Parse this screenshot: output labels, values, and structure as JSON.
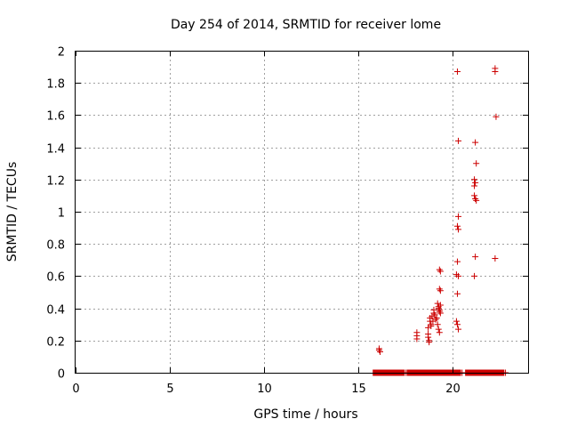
{
  "chart_data": {
    "type": "scatter",
    "title": "Day 254 of 2014, SRMTID for receiver lome",
    "xlabel": "GPS time / hours",
    "ylabel": "SRMTID / TECUs",
    "xlim": [
      0,
      24
    ],
    "ylim": [
      0,
      2
    ],
    "xticks": [
      0,
      5,
      10,
      15,
      20
    ],
    "xtick_labels": [
      "0",
      "5",
      "10",
      "15",
      "20"
    ],
    "yticks": [
      0,
      0.2,
      0.4,
      0.6,
      0.8,
      1,
      1.2,
      1.4,
      1.6,
      1.8,
      2
    ],
    "ytick_labels": [
      "0",
      "0.2",
      "0.4",
      "0.6",
      "0.8",
      "1",
      "1.2",
      "1.4",
      "1.6",
      "1.8",
      "2"
    ],
    "grid": true,
    "marker": "+",
    "color": "#cc0000",
    "series": [
      {
        "name": "SRMTID",
        "points": [
          [
            16.1,
            0.15
          ],
          [
            16.1,
            0.14
          ],
          [
            16.15,
            0.13
          ],
          [
            18.1,
            0.25
          ],
          [
            18.1,
            0.23
          ],
          [
            18.1,
            0.21
          ],
          [
            18.7,
            0.28
          ],
          [
            18.7,
            0.24
          ],
          [
            18.7,
            0.22
          ],
          [
            18.75,
            0.2
          ],
          [
            18.75,
            0.19
          ],
          [
            18.8,
            0.34
          ],
          [
            18.8,
            0.32
          ],
          [
            18.85,
            0.3
          ],
          [
            18.85,
            0.29
          ],
          [
            18.9,
            0.35
          ],
          [
            18.95,
            0.32
          ],
          [
            19.0,
            0.39
          ],
          [
            19.0,
            0.37
          ],
          [
            19.05,
            0.36
          ],
          [
            19.1,
            0.33
          ],
          [
            19.15,
            0.34
          ],
          [
            19.2,
            0.43
          ],
          [
            19.25,
            0.41
          ],
          [
            19.25,
            0.4
          ],
          [
            19.3,
            0.39
          ],
          [
            19.3,
            0.38
          ],
          [
            19.35,
            0.37
          ],
          [
            19.2,
            0.3
          ],
          [
            19.25,
            0.27
          ],
          [
            19.3,
            0.25
          ],
          [
            19.35,
            0.42
          ],
          [
            19.3,
            0.64
          ],
          [
            19.35,
            0.63
          ],
          [
            19.3,
            0.52
          ],
          [
            19.35,
            0.51
          ],
          [
            20.25,
            1.87
          ],
          [
            20.3,
            1.44
          ],
          [
            20.3,
            0.97
          ],
          [
            20.25,
            0.91
          ],
          [
            20.3,
            0.89
          ],
          [
            20.25,
            0.69
          ],
          [
            20.2,
            0.61
          ],
          [
            20.3,
            0.6
          ],
          [
            20.25,
            0.49
          ],
          [
            20.2,
            0.32
          ],
          [
            20.25,
            0.3
          ],
          [
            20.3,
            0.27
          ],
          [
            21.2,
            1.43
          ],
          [
            21.25,
            1.3
          ],
          [
            21.15,
            1.2
          ],
          [
            21.2,
            1.18
          ],
          [
            21.15,
            1.16
          ],
          [
            21.15,
            1.1
          ],
          [
            21.2,
            1.08
          ],
          [
            21.25,
            1.07
          ],
          [
            21.2,
            0.72
          ],
          [
            21.15,
            0.6
          ],
          [
            22.25,
            1.89
          ],
          [
            22.25,
            1.87
          ],
          [
            22.3,
            1.59
          ],
          [
            22.25,
            0.71
          ]
        ],
        "zero_runs": [
          [
            15.9,
            16.6
          ],
          [
            16.8,
            17.3
          ],
          [
            17.7,
            18.3
          ],
          [
            18.4,
            18.9
          ],
          [
            19.0,
            19.6
          ],
          [
            19.7,
            20.3
          ],
          [
            20.8,
            21.3
          ],
          [
            21.5,
            21.9
          ],
          [
            22.0,
            22.6
          ]
        ],
        "zero_points": [
          17.5,
          20.5,
          22.8
        ]
      }
    ]
  }
}
